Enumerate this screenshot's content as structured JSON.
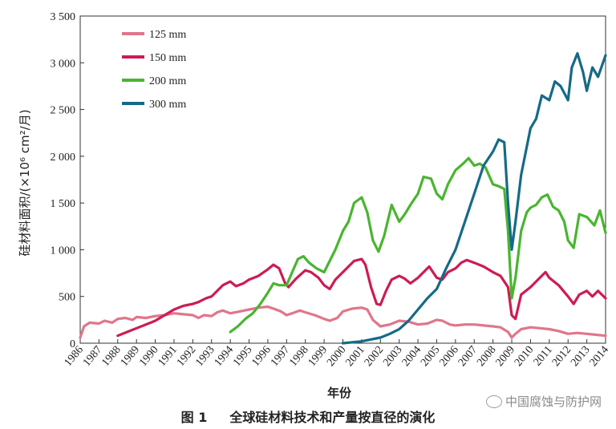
{
  "chart_data": {
    "type": "line",
    "ylabel": "硅材料面积/(×10⁶ cm²/月)",
    "xlabel": "年份",
    "ylim": [
      0,
      3500
    ],
    "xlim": [
      1986,
      2014
    ],
    "yticks": [
      0,
      500,
      1000,
      1500,
      2000,
      2500,
      3000,
      3500
    ],
    "ytick_labels": [
      "0",
      "500",
      "1 000",
      "1 500",
      "2 000",
      "2 500",
      "3 000",
      "3 500"
    ],
    "xticks": [
      "1986",
      "1987",
      "1988",
      "1989",
      "1990",
      "1991",
      "1992",
      "1993",
      "1994",
      "1995",
      "1996",
      "1997",
      "1998",
      "1999",
      "2000",
      "2001",
      "2002",
      "2003",
      "2004",
      "2005",
      "2006",
      "2007",
      "2008",
      "2009",
      "2010",
      "2011",
      "2012",
      "2013",
      "2014"
    ],
    "legend_position": "top-left",
    "grid": false,
    "series": [
      {
        "name": "125 mm",
        "color": "#e0768a",
        "points": [
          [
            1986,
            60
          ],
          [
            1986.2,
            180
          ],
          [
            1986.5,
            220
          ],
          [
            1987,
            210
          ],
          [
            1987.3,
            240
          ],
          [
            1987.7,
            220
          ],
          [
            1988,
            260
          ],
          [
            1988.4,
            270
          ],
          [
            1988.8,
            250
          ],
          [
            1989,
            280
          ],
          [
            1989.5,
            270
          ],
          [
            1990,
            290
          ],
          [
            1990.5,
            300
          ],
          [
            1991,
            320
          ],
          [
            1991.5,
            310
          ],
          [
            1992,
            300
          ],
          [
            1992.3,
            270
          ],
          [
            1992.6,
            300
          ],
          [
            1993,
            290
          ],
          [
            1993.3,
            330
          ],
          [
            1993.6,
            350
          ],
          [
            1994,
            320
          ],
          [
            1994.5,
            340
          ],
          [
            1995,
            360
          ],
          [
            1995.5,
            380
          ],
          [
            1996,
            390
          ],
          [
            1996.3,
            370
          ],
          [
            1996.7,
            340
          ],
          [
            1997,
            300
          ],
          [
            1997.3,
            320
          ],
          [
            1997.7,
            350
          ],
          [
            1998,
            330
          ],
          [
            1998.5,
            300
          ],
          [
            1999,
            260
          ],
          [
            1999.3,
            240
          ],
          [
            1999.7,
            270
          ],
          [
            2000,
            340
          ],
          [
            2000.5,
            370
          ],
          [
            2001,
            380
          ],
          [
            2001.3,
            360
          ],
          [
            2001.6,
            250
          ],
          [
            2002,
            180
          ],
          [
            2002.5,
            200
          ],
          [
            2003,
            240
          ],
          [
            2003.5,
            230
          ],
          [
            2004,
            200
          ],
          [
            2004.5,
            210
          ],
          [
            2005,
            250
          ],
          [
            2005.3,
            240
          ],
          [
            2005.7,
            200
          ],
          [
            2006,
            190
          ],
          [
            2006.5,
            200
          ],
          [
            2007,
            200
          ],
          [
            2007.5,
            190
          ],
          [
            2008,
            180
          ],
          [
            2008.4,
            170
          ],
          [
            2008.8,
            120
          ],
          [
            2009,
            60
          ],
          [
            2009.2,
            100
          ],
          [
            2009.5,
            150
          ],
          [
            2010,
            170
          ],
          [
            2010.5,
            160
          ],
          [
            2011,
            150
          ],
          [
            2011.5,
            130
          ],
          [
            2012,
            100
          ],
          [
            2012.5,
            110
          ],
          [
            2013,
            100
          ],
          [
            2013.5,
            90
          ],
          [
            2014,
            80
          ]
        ]
      },
      {
        "name": "150 mm",
        "color": "#cc1c54",
        "points": [
          [
            1988,
            80
          ],
          [
            1988.5,
            120
          ],
          [
            1989,
            160
          ],
          [
            1989.5,
            200
          ],
          [
            1990,
            240
          ],
          [
            1990.5,
            300
          ],
          [
            1991,
            360
          ],
          [
            1991.5,
            400
          ],
          [
            1992,
            420
          ],
          [
            1992.3,
            440
          ],
          [
            1992.7,
            480
          ],
          [
            1993,
            500
          ],
          [
            1993.3,
            560
          ],
          [
            1993.6,
            620
          ],
          [
            1994,
            660
          ],
          [
            1994.3,
            610
          ],
          [
            1994.7,
            640
          ],
          [
            1995,
            680
          ],
          [
            1995.5,
            720
          ],
          [
            1996,
            790
          ],
          [
            1996.3,
            840
          ],
          [
            1996.6,
            800
          ],
          [
            1996.9,
            650
          ],
          [
            1997.1,
            600
          ],
          [
            1997.5,
            690
          ],
          [
            1998,
            780
          ],
          [
            1998.3,
            760
          ],
          [
            1998.7,
            700
          ],
          [
            1999,
            620
          ],
          [
            1999.3,
            580
          ],
          [
            1999.6,
            680
          ],
          [
            2000,
            760
          ],
          [
            2000.3,
            820
          ],
          [
            2000.6,
            880
          ],
          [
            2001,
            900
          ],
          [
            2001.2,
            840
          ],
          [
            2001.5,
            600
          ],
          [
            2001.8,
            420
          ],
          [
            2002,
            410
          ],
          [
            2002.3,
            560
          ],
          [
            2002.6,
            680
          ],
          [
            2003,
            720
          ],
          [
            2003.3,
            690
          ],
          [
            2003.6,
            640
          ],
          [
            2004,
            700
          ],
          [
            2004.3,
            760
          ],
          [
            2004.6,
            820
          ],
          [
            2005,
            700
          ],
          [
            2005.3,
            680
          ],
          [
            2005.6,
            760
          ],
          [
            2006,
            800
          ],
          [
            2006.3,
            860
          ],
          [
            2006.6,
            890
          ],
          [
            2007,
            860
          ],
          [
            2007.5,
            820
          ],
          [
            2008,
            760
          ],
          [
            2008.4,
            720
          ],
          [
            2008.8,
            600
          ],
          [
            2009,
            300
          ],
          [
            2009.2,
            260
          ],
          [
            2009.5,
            520
          ],
          [
            2010,
            600
          ],
          [
            2010.5,
            700
          ],
          [
            2010.8,
            760
          ],
          [
            2011,
            700
          ],
          [
            2011.5,
            620
          ],
          [
            2012,
            500
          ],
          [
            2012.3,
            420
          ],
          [
            2012.6,
            520
          ],
          [
            2013,
            560
          ],
          [
            2013.3,
            500
          ],
          [
            2013.6,
            560
          ],
          [
            2014,
            480
          ]
        ]
      },
      {
        "name": "200 mm",
        "color": "#49b530",
        "points": [
          [
            1994,
            120
          ],
          [
            1994.4,
            180
          ],
          [
            1994.8,
            260
          ],
          [
            1995.2,
            320
          ],
          [
            1995.6,
            420
          ],
          [
            1996,
            540
          ],
          [
            1996.3,
            640
          ],
          [
            1996.6,
            620
          ],
          [
            1997,
            620
          ],
          [
            1997.3,
            760
          ],
          [
            1997.6,
            900
          ],
          [
            1997.9,
            930
          ],
          [
            1998.2,
            860
          ],
          [
            1998.6,
            800
          ],
          [
            1999,
            760
          ],
          [
            1999.3,
            880
          ],
          [
            1999.6,
            1000
          ],
          [
            2000,
            1200
          ],
          [
            2000.3,
            1300
          ],
          [
            2000.6,
            1500
          ],
          [
            2001,
            1560
          ],
          [
            2001.3,
            1400
          ],
          [
            2001.6,
            1100
          ],
          [
            2001.9,
            980
          ],
          [
            2002.2,
            1150
          ],
          [
            2002.6,
            1480
          ],
          [
            2003,
            1300
          ],
          [
            2003.3,
            1380
          ],
          [
            2003.6,
            1480
          ],
          [
            2004,
            1600
          ],
          [
            2004.3,
            1780
          ],
          [
            2004.7,
            1760
          ],
          [
            2005,
            1600
          ],
          [
            2005.3,
            1540
          ],
          [
            2005.6,
            1700
          ],
          [
            2006,
            1850
          ],
          [
            2006.4,
            1920
          ],
          [
            2006.7,
            1980
          ],
          [
            2007,
            1900
          ],
          [
            2007.3,
            1920
          ],
          [
            2007.6,
            1880
          ],
          [
            2008,
            1700
          ],
          [
            2008.3,
            1680
          ],
          [
            2008.6,
            1650
          ],
          [
            2008.8,
            1200
          ],
          [
            2009,
            480
          ],
          [
            2009.2,
            700
          ],
          [
            2009.5,
            1200
          ],
          [
            2009.8,
            1400
          ],
          [
            2010,
            1450
          ],
          [
            2010.3,
            1480
          ],
          [
            2010.6,
            1560
          ],
          [
            2010.9,
            1590
          ],
          [
            2011.2,
            1460
          ],
          [
            2011.5,
            1420
          ],
          [
            2011.8,
            1300
          ],
          [
            2012,
            1100
          ],
          [
            2012.3,
            1020
          ],
          [
            2012.6,
            1380
          ],
          [
            2013,
            1350
          ],
          [
            2013.4,
            1260
          ],
          [
            2013.7,
            1420
          ],
          [
            2014,
            1180
          ]
        ]
      },
      {
        "name": "300 mm",
        "color": "#156a88",
        "points": [
          [
            2000,
            0
          ],
          [
            2001,
            20
          ],
          [
            2001.5,
            40
          ],
          [
            2002,
            60
          ],
          [
            2002.5,
            100
          ],
          [
            2003,
            150
          ],
          [
            2003.5,
            240
          ],
          [
            2004,
            360
          ],
          [
            2004.5,
            480
          ],
          [
            2005,
            580
          ],
          [
            2005.5,
            800
          ],
          [
            2006,
            1000
          ],
          [
            2006.5,
            1300
          ],
          [
            2007,
            1600
          ],
          [
            2007.5,
            1900
          ],
          [
            2008,
            2050
          ],
          [
            2008.3,
            2180
          ],
          [
            2008.6,
            2150
          ],
          [
            2008.8,
            1500
          ],
          [
            2009,
            1000
          ],
          [
            2009.2,
            1300
          ],
          [
            2009.5,
            1800
          ],
          [
            2010,
            2300
          ],
          [
            2010.3,
            2400
          ],
          [
            2010.6,
            2650
          ],
          [
            2011,
            2600
          ],
          [
            2011.3,
            2800
          ],
          [
            2011.6,
            2750
          ],
          [
            2012,
            2600
          ],
          [
            2012.2,
            2950
          ],
          [
            2012.5,
            3100
          ],
          [
            2012.8,
            2900
          ],
          [
            2013,
            2700
          ],
          [
            2013.3,
            2950
          ],
          [
            2013.6,
            2850
          ],
          [
            2014,
            3080
          ]
        ]
      }
    ]
  },
  "caption": {
    "number": "图 1",
    "text": "全球硅材料技术和产量按直径的演化"
  },
  "watermark": "中国腐蚀与防护网"
}
